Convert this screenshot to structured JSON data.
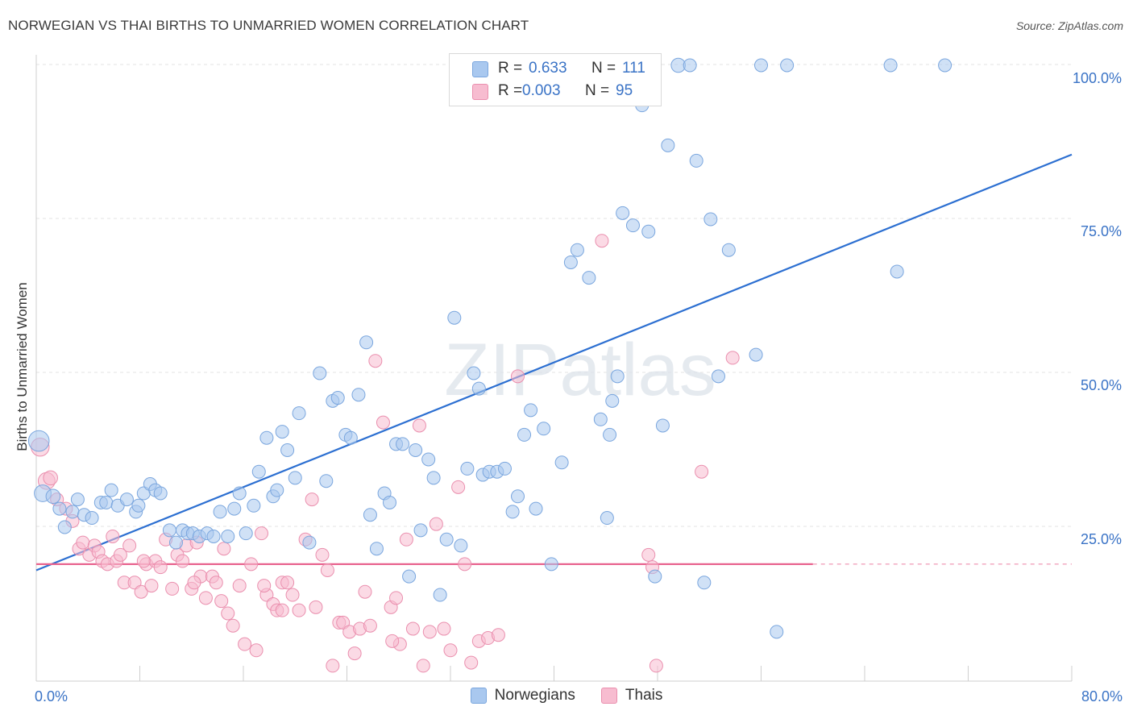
{
  "header": {
    "title": "NORWEGIAN VS THAI BIRTHS TO UNMARRIED WOMEN CORRELATION CHART",
    "source": "Source: ZipAtlas.com"
  },
  "watermark": "ZIPatlas",
  "legend": {
    "r_label": "R =",
    "n_label": "N =",
    "rows": [
      {
        "name": "Norwegians",
        "r": "0.633",
        "n": "111",
        "fill": "#a9c8ef",
        "stroke": "#7aa6de"
      },
      {
        "name": "Thais",
        "r": "0.003",
        "n": "95",
        "fill": "#f7bcd0",
        "stroke": "#ea8fae"
      }
    ]
  },
  "colors": {
    "blue_point": "#a9c8ef",
    "blue_stroke": "#7aa6de",
    "blue_line": "#2c6fd1",
    "pink_point": "#f7bcd0",
    "pink_stroke": "#ea8fae",
    "pink_line": "#e8648f",
    "tick_label": "#3a73c6",
    "grid": "#e3e3e3"
  },
  "chart_data": {
    "type": "scatter",
    "title": "NORWEGIAN VS THAI BIRTHS TO UNMARRIED WOMEN CORRELATION CHART",
    "xlabel": "",
    "ylabel": "Births to Unmarried Women",
    "xlim": [
      0,
      80
    ],
    "ylim": [
      0,
      102
    ],
    "x_tick_labels": [
      "0.0%",
      "80.0%"
    ],
    "y_ticks": [
      25,
      50,
      75,
      100
    ],
    "y_tick_labels": [
      "25.0%",
      "50.0%",
      "75.0%",
      "100.0%"
    ],
    "grid": "horizontal dashed",
    "legend_position": "top-center",
    "series": [
      {
        "name": "Norwegians",
        "trend": {
          "x": [
            0,
            80
          ],
          "y": [
            18,
            85.5
          ]
        },
        "points": [
          [
            0.2,
            39,
            1.6
          ],
          [
            0.5,
            30.5,
            1.3
          ],
          [
            1.3,
            30,
            1.1
          ],
          [
            1.8,
            28,
            1
          ],
          [
            2.2,
            25,
            1
          ],
          [
            2.8,
            27.5,
            1
          ],
          [
            3.2,
            29.5,
            1
          ],
          [
            3.7,
            27,
            1
          ],
          [
            4.3,
            26.5,
            1
          ],
          [
            5,
            29,
            1
          ],
          [
            5.4,
            29,
            1
          ],
          [
            5.8,
            31,
            1
          ],
          [
            6.3,
            28.5,
            1
          ],
          [
            7,
            29.5,
            1
          ],
          [
            7.7,
            27.5,
            1
          ],
          [
            7.9,
            28.5,
            1
          ],
          [
            8.3,
            30.5,
            1
          ],
          [
            8.8,
            32,
            1
          ],
          [
            9.2,
            31,
            1
          ],
          [
            9.6,
            30.5,
            1
          ],
          [
            10.3,
            24.5,
            1
          ],
          [
            10.8,
            22.5,
            1
          ],
          [
            11.3,
            24.5,
            1
          ],
          [
            11.7,
            24,
            1
          ],
          [
            12.1,
            24,
            1
          ],
          [
            12.6,
            23.5,
            1
          ],
          [
            13.2,
            24,
            1
          ],
          [
            13.7,
            23.5,
            1
          ],
          [
            14.2,
            27.5,
            1
          ],
          [
            14.8,
            23.5,
            1
          ],
          [
            15.3,
            28,
            1
          ],
          [
            15.7,
            30.5,
            1
          ],
          [
            16.2,
            24,
            1
          ],
          [
            16.8,
            28.5,
            1
          ],
          [
            17.2,
            34,
            1
          ],
          [
            17.8,
            39.5,
            1
          ],
          [
            18.3,
            30,
            1
          ],
          [
            18.6,
            31,
            1
          ],
          [
            19,
            40.5,
            1
          ],
          [
            19.4,
            37.5,
            1
          ],
          [
            20,
            33,
            1
          ],
          [
            20.3,
            43.5,
            1
          ],
          [
            21.1,
            22.5,
            1
          ],
          [
            21.9,
            50,
            1
          ],
          [
            22.4,
            32.5,
            1
          ],
          [
            22.9,
            45.5,
            1
          ],
          [
            23.3,
            46,
            1
          ],
          [
            23.9,
            40,
            1
          ],
          [
            24.3,
            39.5,
            1
          ],
          [
            24.9,
            46.5,
            1
          ],
          [
            25.5,
            55,
            1
          ],
          [
            25.8,
            27,
            1
          ],
          [
            26.3,
            21.5,
            1
          ],
          [
            26.9,
            30.5,
            1
          ],
          [
            27.3,
            29,
            1
          ],
          [
            27.8,
            38.5,
            1
          ],
          [
            28.3,
            38.5,
            1
          ],
          [
            28.8,
            17,
            1
          ],
          [
            29.3,
            37.5,
            1
          ],
          [
            29.7,
            24.5,
            1
          ],
          [
            30.3,
            36,
            1
          ],
          [
            30.7,
            33,
            1
          ],
          [
            31.2,
            14,
            1
          ],
          [
            31.7,
            23,
            1
          ],
          [
            32.3,
            59,
            1
          ],
          [
            32.8,
            22,
            1
          ],
          [
            33.3,
            34.5,
            1
          ],
          [
            33.8,
            50,
            1
          ],
          [
            34.2,
            47.5,
            1
          ],
          [
            34.5,
            33.5,
            1
          ],
          [
            35,
            34,
            1
          ],
          [
            35.6,
            34,
            1
          ],
          [
            36.2,
            34.5,
            1
          ],
          [
            36.8,
            27.5,
            1
          ],
          [
            37.2,
            30,
            1
          ],
          [
            37.7,
            40,
            1
          ],
          [
            38.2,
            44,
            1
          ],
          [
            38.6,
            28,
            1
          ],
          [
            39.2,
            41,
            1
          ],
          [
            39.8,
            19,
            1
          ],
          [
            40.6,
            35.5,
            1
          ],
          [
            41.3,
            68,
            1
          ],
          [
            41.8,
            70,
            1
          ],
          [
            42.7,
            65.5,
            1
          ],
          [
            43.6,
            42.5,
            1
          ],
          [
            44.1,
            26.5,
            1
          ],
          [
            44.3,
            40,
            1
          ],
          [
            44.5,
            45.5,
            1
          ],
          [
            44.9,
            49.5,
            1
          ],
          [
            45.3,
            76,
            1
          ],
          [
            46.1,
            74,
            1
          ],
          [
            46.8,
            93.5,
            1
          ],
          [
            47.3,
            73,
            1
          ],
          [
            47.8,
            17,
            1
          ],
          [
            48.4,
            41.5,
            1
          ],
          [
            48.8,
            87,
            1
          ],
          [
            49.6,
            100,
            1.1
          ],
          [
            50.5,
            100,
            1
          ],
          [
            51,
            84.5,
            1
          ],
          [
            51.6,
            16,
            1
          ],
          [
            52.1,
            75,
            1
          ],
          [
            52.7,
            49.5,
            1
          ],
          [
            53.5,
            70,
            1
          ],
          [
            55.6,
            53,
            1
          ],
          [
            56,
            100,
            1
          ],
          [
            57.2,
            8,
            1
          ],
          [
            58,
            100,
            1
          ],
          [
            66,
            100,
            1
          ],
          [
            66.5,
            66.5,
            1
          ],
          [
            70.2,
            100,
            1
          ]
        ]
      },
      {
        "name": "Thais",
        "trend": {
          "x": [
            0,
            60
          ],
          "y": [
            19,
            19
          ]
        },
        "points": [
          [
            0.3,
            38,
            1.4
          ],
          [
            0.8,
            32.5,
            1.3
          ],
          [
            1.1,
            33,
            1.1
          ],
          [
            1.6,
            29.5,
            1
          ],
          [
            2.3,
            28,
            1
          ],
          [
            2.8,
            26,
            1
          ],
          [
            3.3,
            21.5,
            1
          ],
          [
            3.6,
            22.5,
            1
          ],
          [
            4.1,
            20.5,
            1
          ],
          [
            4.5,
            22,
            1
          ],
          [
            4.8,
            21,
            1
          ],
          [
            5.1,
            19.5,
            1
          ],
          [
            5.5,
            19,
            1
          ],
          [
            5.9,
            23.5,
            1
          ],
          [
            6.2,
            19.5,
            1
          ],
          [
            6.5,
            20.5,
            1
          ],
          [
            6.8,
            16,
            1
          ],
          [
            7.2,
            22,
            1
          ],
          [
            7.6,
            16,
            1
          ],
          [
            8.1,
            14.5,
            1
          ],
          [
            8.5,
            19,
            1
          ],
          [
            8.9,
            15.5,
            1
          ],
          [
            9.2,
            19.5,
            1
          ],
          [
            9.6,
            18.5,
            1
          ],
          [
            10,
            23,
            1
          ],
          [
            10.5,
            15,
            1
          ],
          [
            10.9,
            20.5,
            1
          ],
          [
            11.3,
            19.5,
            1
          ],
          [
            11.6,
            22,
            1
          ],
          [
            12,
            15,
            1
          ],
          [
            12.4,
            22.5,
            1
          ],
          [
            12.7,
            17,
            1
          ],
          [
            13.1,
            13.5,
            1
          ],
          [
            13.6,
            17,
            1
          ],
          [
            13.9,
            16,
            1
          ],
          [
            14.3,
            13,
            1
          ],
          [
            14.8,
            11,
            1
          ],
          [
            15.2,
            9,
            1
          ],
          [
            15.7,
            15.5,
            1
          ],
          [
            16.1,
            6,
            1
          ],
          [
            16.6,
            19,
            1
          ],
          [
            17,
            5,
            1
          ],
          [
            17.4,
            24,
            1
          ],
          [
            17.8,
            14,
            1
          ],
          [
            18.3,
            12.5,
            1
          ],
          [
            18.6,
            11.5,
            1
          ],
          [
            19,
            16,
            1
          ],
          [
            19.4,
            16,
            1
          ],
          [
            19.8,
            14,
            1
          ],
          [
            20.3,
            11.5,
            1
          ],
          [
            20.8,
            23,
            1
          ],
          [
            21.3,
            29.5,
            1
          ],
          [
            21.6,
            12,
            1
          ],
          [
            22.1,
            20.5,
            1
          ],
          [
            22.5,
            18,
            1
          ],
          [
            22.9,
            2.5,
            1
          ],
          [
            23.4,
            9.5,
            1
          ],
          [
            23.7,
            9.5,
            1
          ],
          [
            24.2,
            8,
            1
          ],
          [
            24.6,
            4.5,
            1
          ],
          [
            25,
            8.5,
            1
          ],
          [
            25.4,
            14.5,
            1
          ],
          [
            25.8,
            9,
            1
          ],
          [
            26.2,
            52,
            1
          ],
          [
            26.8,
            42,
            1
          ],
          [
            27.4,
            12,
            1
          ],
          [
            27.8,
            13.5,
            1
          ],
          [
            28.1,
            6,
            1
          ],
          [
            28.6,
            23,
            1
          ],
          [
            29.1,
            8.5,
            1
          ],
          [
            29.6,
            41.5,
            1
          ],
          [
            29.9,
            2.5,
            1
          ],
          [
            30.4,
            8,
            1
          ],
          [
            30.9,
            25.5,
            1
          ],
          [
            31.5,
            8.5,
            1
          ],
          [
            32,
            5,
            1
          ],
          [
            32.6,
            31.5,
            1
          ],
          [
            33.1,
            19,
            1
          ],
          [
            33.6,
            3,
            1
          ],
          [
            34.2,
            6.5,
            1
          ],
          [
            34.9,
            7,
            1
          ],
          [
            35.7,
            7.5,
            1
          ],
          [
            37.2,
            49.5,
            1
          ],
          [
            43.7,
            71.5,
            1
          ],
          [
            47.3,
            20.5,
            1
          ],
          [
            47.6,
            18.5,
            1
          ],
          [
            47.9,
            2.5,
            1
          ],
          [
            51.4,
            34,
            1
          ],
          [
            53.8,
            52.5,
            1
          ],
          [
            19,
            11.5,
            1
          ],
          [
            12.2,
            16,
            1
          ],
          [
            17.6,
            15.5,
            1
          ],
          [
            8.3,
            19.5,
            1
          ],
          [
            14.5,
            21.5,
            1
          ],
          [
            27.5,
            6.5,
            1
          ]
        ]
      }
    ]
  }
}
